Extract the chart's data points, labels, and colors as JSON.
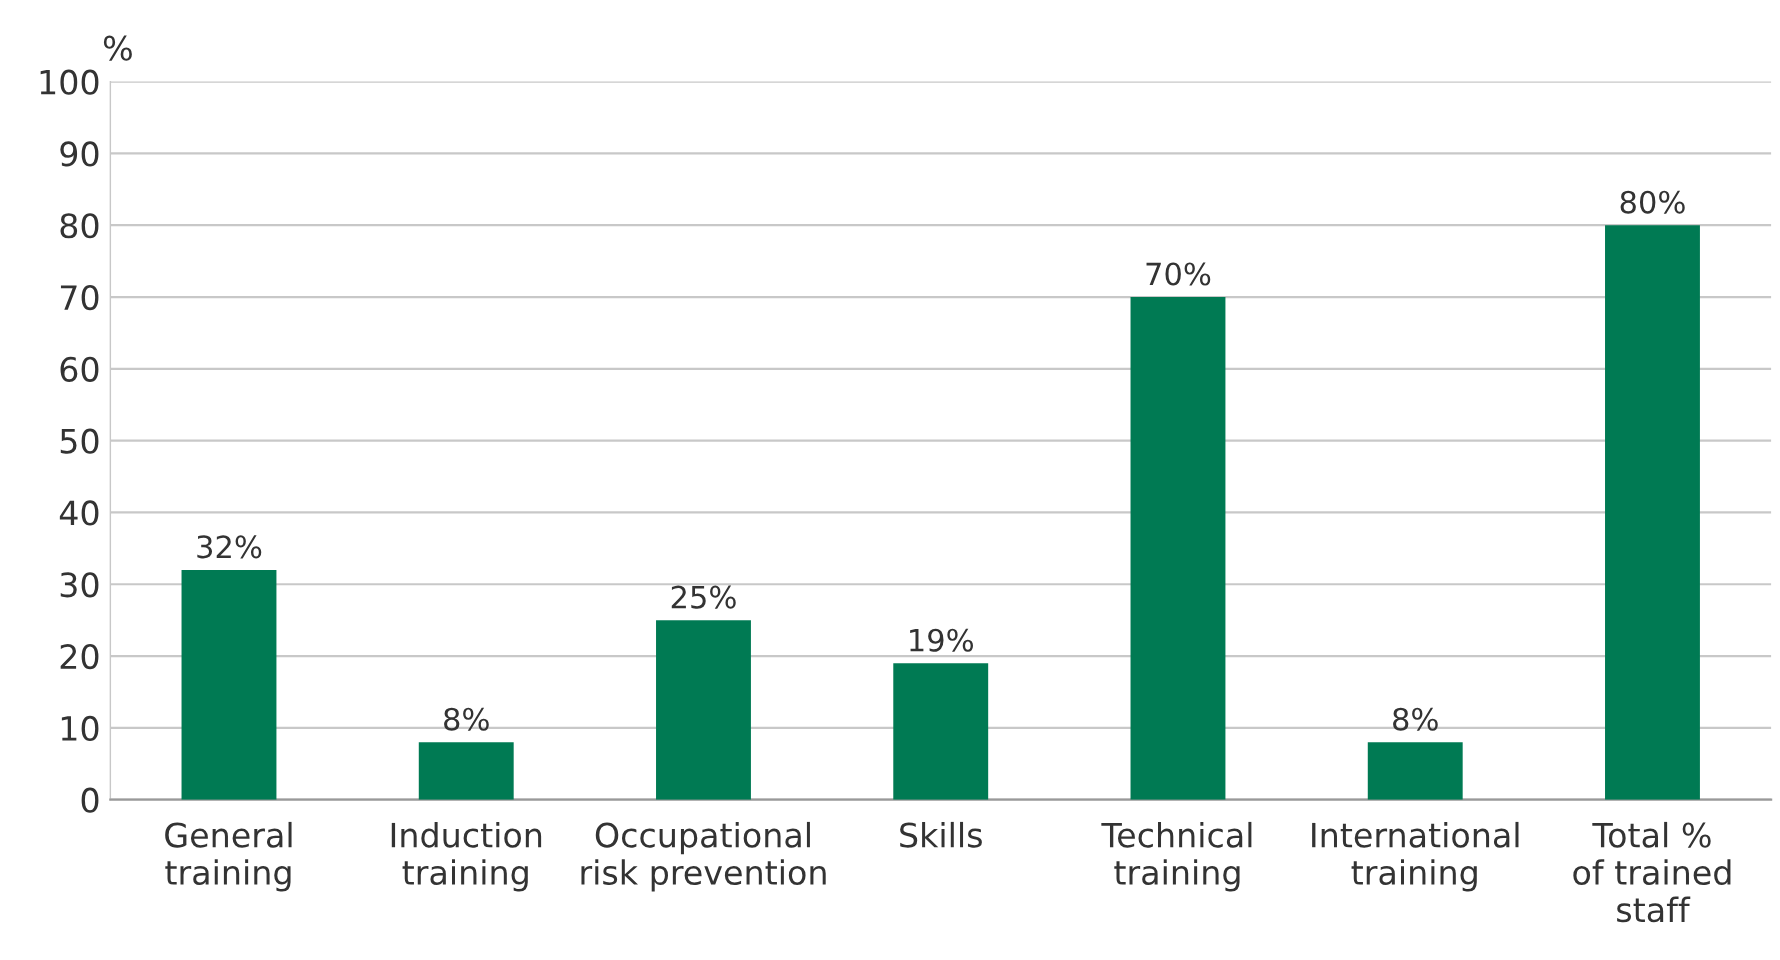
{
  "chart_data": {
    "type": "bar",
    "ylabel": "%",
    "categories": [
      "General\ntraining",
      "Induction\ntraining",
      "Occupational\nrisk prevention",
      "Skills",
      "Technical\ntraining",
      "International\ntraining",
      "Total %\nof trained\nstaff"
    ],
    "values": [
      32,
      8,
      25,
      19,
      70,
      8,
      80
    ],
    "value_labels": [
      "32%",
      "8%",
      "25%",
      "19%",
      "70%",
      "8%",
      "80%"
    ],
    "color": "#007a53",
    "ylim": [
      0,
      100
    ],
    "yticks": [
      0,
      10,
      20,
      30,
      40,
      50,
      60,
      70,
      80,
      90,
      100
    ],
    "grid": "y"
  }
}
